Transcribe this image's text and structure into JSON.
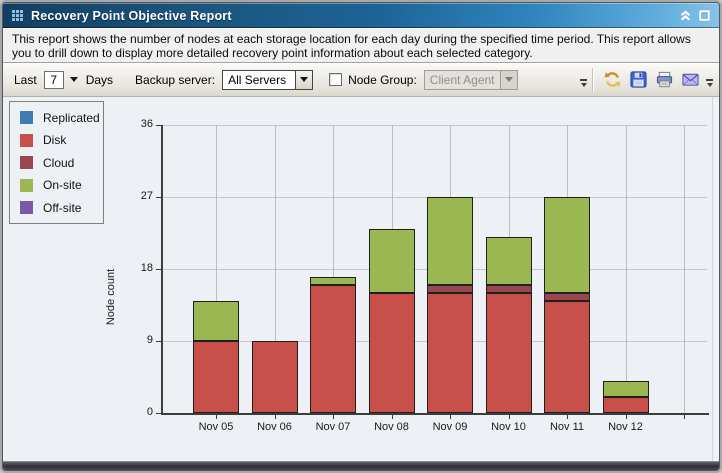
{
  "window": {
    "title": "Recovery Point Objective Report",
    "icons": {
      "grip": "grid-grip-icon",
      "collapse": "double-chevron-up-icon",
      "maximize": "square-outline-icon"
    }
  },
  "description": "This report shows the number of nodes at each storage location for each day during the specified time period. This report allows you to drill down to display more detailed recovery point information about each selected category.",
  "toolbar": {
    "last_label": "Last",
    "days_value": "7",
    "days_label": "Days",
    "backup_server_label": "Backup server:",
    "backup_server_value": "All Servers",
    "node_group_checked": false,
    "node_group_label": "Node Group:",
    "node_group_value": "Client Agent",
    "icons": [
      "refresh-icon",
      "save-icon",
      "print-icon",
      "email-icon"
    ]
  },
  "legend": {
    "items": [
      {
        "label": "Replicated",
        "color": "#3f7cb5"
      },
      {
        "label": "Disk",
        "color": "#c8504a"
      },
      {
        "label": "Cloud",
        "color": "#97474d"
      },
      {
        "label": "On-site",
        "color": "#9ab751"
      },
      {
        "label": "Off-site",
        "color": "#7b58a8"
      }
    ]
  },
  "chart_data": {
    "type": "bar",
    "stacked": true,
    "title": "",
    "xlabel": "",
    "ylabel": "Node count",
    "categories": [
      "Nov 05",
      "Nov 06",
      "Nov 07",
      "Nov 08",
      "Nov 09",
      "Nov 10",
      "Nov 11",
      "Nov 12"
    ],
    "series": [
      {
        "name": "Replicated",
        "color": "#3f7cb5",
        "values": [
          0,
          0,
          0,
          0,
          0,
          0,
          0,
          0
        ]
      },
      {
        "name": "Disk",
        "color": "#c8504a",
        "values": [
          9,
          9,
          16,
          15,
          15,
          15,
          14,
          2
        ]
      },
      {
        "name": "Cloud",
        "color": "#97474d",
        "values": [
          0,
          0,
          0,
          0,
          1,
          1,
          1,
          0
        ]
      },
      {
        "name": "On-site",
        "color": "#9ab751",
        "values": [
          5,
          0,
          1,
          8,
          11,
          6,
          12,
          2
        ]
      },
      {
        "name": "Off-site",
        "color": "#7b58a8",
        "values": [
          0,
          0,
          0,
          0,
          0,
          0,
          0,
          0
        ]
      }
    ],
    "totals": [
      14,
      9,
      17,
      23,
      27,
      22,
      27,
      4
    ],
    "ylim": [
      0,
      36
    ],
    "yticks": [
      0,
      9,
      18,
      27,
      36
    ],
    "grid": true,
    "legend_position": "left",
    "bar_border_color": "#1f1f1f",
    "plot_background": "#edf1f6"
  }
}
